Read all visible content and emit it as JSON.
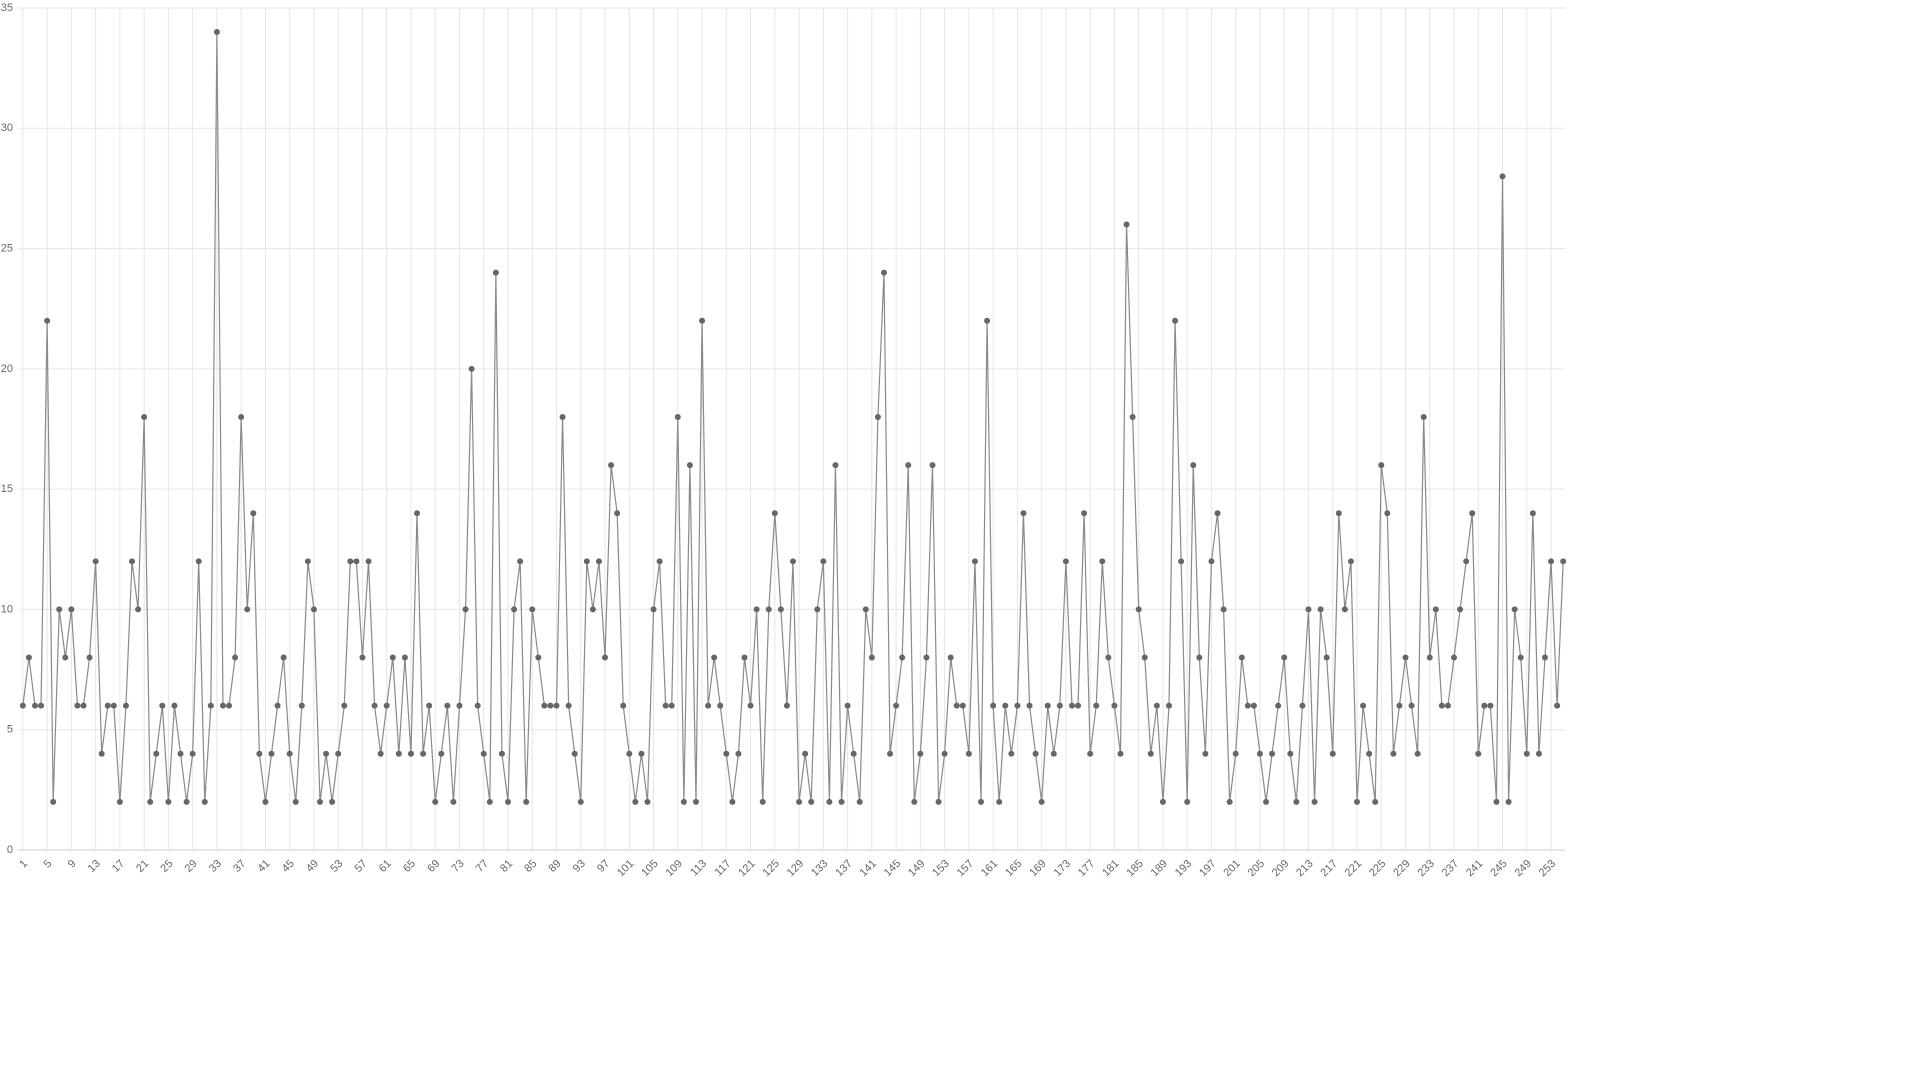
{
  "chart_data": {
    "type": "line",
    "x": [
      1,
      2,
      3,
      4,
      5,
      6,
      7,
      8,
      9,
      10,
      11,
      12,
      13,
      14,
      15,
      16,
      17,
      18,
      19,
      20,
      21,
      22,
      23,
      24,
      25,
      26,
      27,
      28,
      29,
      30,
      31,
      32,
      33,
      34,
      35,
      36,
      37,
      38,
      39,
      40,
      41,
      42,
      43,
      44,
      45,
      46,
      47,
      48,
      49,
      50,
      51,
      52,
      53,
      54,
      55,
      56,
      57,
      58,
      59,
      60,
      61,
      62,
      63,
      64,
      65,
      66,
      67,
      68,
      69,
      70,
      71,
      72,
      73,
      74,
      75,
      76,
      77,
      78,
      79,
      80,
      81,
      82,
      83,
      84,
      85,
      86,
      87,
      88,
      89,
      90,
      91,
      92,
      93,
      94,
      95,
      96,
      97,
      98,
      99,
      100,
      101,
      102,
      103,
      104,
      105,
      106,
      107,
      108,
      109,
      110,
      111,
      112,
      113,
      114,
      115,
      116,
      117,
      118,
      119,
      120,
      121,
      122,
      123,
      124,
      125,
      126,
      127,
      128,
      129,
      130,
      131,
      132,
      133,
      134,
      135,
      136,
      137,
      138,
      139,
      140,
      141,
      142,
      143,
      144,
      145,
      146,
      147,
      148,
      149,
      150,
      151,
      152,
      153,
      154,
      155,
      156,
      157,
      158,
      159,
      160,
      161,
      162,
      163,
      164,
      165,
      166,
      167,
      168,
      169,
      170,
      171,
      172,
      173,
      174,
      175,
      176,
      177,
      178,
      179,
      180,
      181,
      182,
      183,
      184,
      185,
      186,
      187,
      188,
      189,
      190,
      191,
      192,
      193,
      194,
      195,
      196,
      197,
      198,
      199,
      200,
      201,
      202,
      203,
      204,
      205,
      206,
      207,
      208,
      209,
      210,
      211,
      212,
      213,
      214,
      215,
      216,
      217,
      218,
      219,
      220,
      221,
      222,
      223,
      224,
      225,
      226,
      227,
      228,
      229,
      230,
      231,
      232,
      233,
      234,
      235,
      236,
      237,
      238,
      239,
      240,
      241,
      242,
      243,
      244,
      245,
      246,
      247,
      248,
      249,
      250,
      251,
      252,
      253,
      254,
      255
    ],
    "values": [
      6,
      8,
      6,
      6,
      22,
      2,
      10,
      8,
      10,
      6,
      6,
      8,
      12,
      4,
      6,
      6,
      2,
      6,
      12,
      10,
      18,
      2,
      4,
      6,
      2,
      6,
      4,
      2,
      4,
      12,
      2,
      6,
      34,
      6,
      6,
      8,
      18,
      10,
      14,
      4,
      2,
      4,
      6,
      8,
      4,
      2,
      6,
      12,
      10,
      2,
      4,
      2,
      4,
      6,
      12,
      12,
      8,
      12,
      6,
      4,
      6,
      8,
      4,
      8,
      4,
      14,
      4,
      6,
      2,
      4,
      6,
      2,
      6,
      10,
      20,
      6,
      4,
      2,
      24,
      4,
      2,
      10,
      12,
      2,
      10,
      8,
      6,
      6,
      6,
      18,
      6,
      4,
      2,
      12,
      10,
      12,
      8,
      16,
      14,
      6,
      4,
      2,
      4,
      2,
      10,
      12,
      6,
      6,
      18,
      2,
      16,
      2,
      22,
      6,
      8,
      6,
      4,
      2,
      4,
      8,
      6,
      10,
      2,
      10,
      14,
      10,
      6,
      12,
      2,
      4,
      2,
      10,
      12,
      2,
      16,
      2,
      6,
      4,
      2,
      10,
      8,
      18,
      24,
      4,
      6,
      8,
      16,
      2,
      4,
      8,
      16,
      2,
      4,
      8,
      6,
      6,
      4,
      12,
      2,
      22,
      6,
      2,
      6,
      4,
      6,
      14,
      6,
      4,
      2,
      6,
      4,
      6,
      12,
      6,
      6,
      14,
      4,
      6,
      12,
      8,
      6,
      4,
      26,
      18,
      10,
      8,
      4,
      6,
      2,
      6,
      22,
      12,
      2,
      16,
      8,
      4,
      12,
      14,
      10,
      2,
      4,
      8,
      6,
      6,
      4,
      2,
      4,
      6,
      8,
      4,
      2,
      6,
      10,
      2,
      10,
      8,
      4,
      14,
      10,
      12,
      2,
      6,
      4,
      2,
      16,
      14,
      4,
      6,
      8,
      6,
      4,
      18,
      8,
      10,
      6,
      6,
      8,
      10,
      12,
      14,
      4,
      6,
      6,
      2,
      28,
      2,
      10,
      8,
      4,
      14,
      4,
      8,
      12,
      6,
      12
    ],
    "color": "#8a8a8a",
    "marker_color": "#666666",
    "xlim": [
      0.2,
      255.3
    ],
    "xticks": [
      1,
      5,
      9,
      13,
      17,
      21,
      25,
      29,
      33,
      37,
      41,
      45,
      49,
      53,
      57,
      61,
      65,
      69,
      73,
      77,
      81,
      85,
      89,
      93,
      97,
      101,
      105,
      109,
      113,
      117,
      121,
      125,
      129,
      133,
      137,
      141,
      145,
      149,
      153,
      157,
      161,
      165,
      169,
      173,
      177,
      181,
      185,
      189,
      193,
      197,
      201,
      205,
      209,
      213,
      217,
      221,
      225,
      229,
      233,
      237,
      241,
      245,
      249,
      253
    ],
    "ylim": [
      0,
      35
    ],
    "yticks": [
      0,
      5,
      10,
      15,
      20,
      25,
      30,
      35
    ],
    "grid": true
  }
}
